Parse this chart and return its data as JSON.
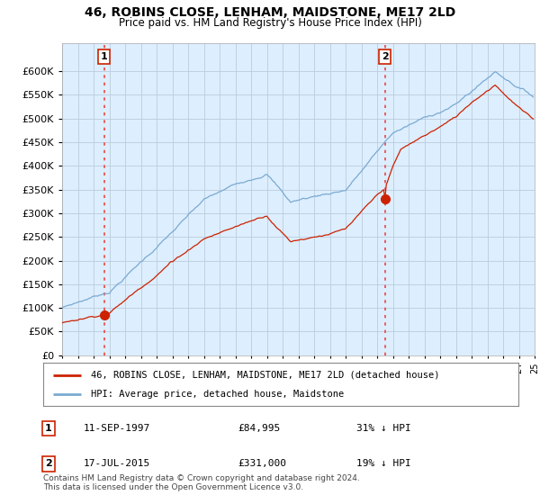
{
  "title": "46, ROBINS CLOSE, LENHAM, MAIDSTONE, ME17 2LD",
  "subtitle": "Price paid vs. HM Land Registry's House Price Index (HPI)",
  "ylim": [
    0,
    660000
  ],
  "yticks": [
    0,
    50000,
    100000,
    150000,
    200000,
    250000,
    300000,
    350000,
    400000,
    450000,
    500000,
    550000,
    600000
  ],
  "sale1_price": 84995,
  "sale1_label": "11-SEP-1997",
  "sale1_pct": "31% ↓ HPI",
  "sale2_price": 331000,
  "sale2_label": "17-JUL-2015",
  "sale2_pct": "19% ↓ HPI",
  "hpi_color": "#7aaad0",
  "price_color": "#cc2200",
  "vline_color": "#ee4444",
  "dot_color": "#cc2200",
  "legend1_label": "46, ROBINS CLOSE, LENHAM, MAIDSTONE, ME17 2LD (detached house)",
  "legend2_label": "HPI: Average price, detached house, Maidstone",
  "footer": "Contains HM Land Registry data © Crown copyright and database right 2024.\nThis data is licensed under the Open Government Licence v3.0.",
  "background_color": "#ffffff",
  "plot_bg_color": "#ddeeff",
  "grid_color": "#bbccdd"
}
